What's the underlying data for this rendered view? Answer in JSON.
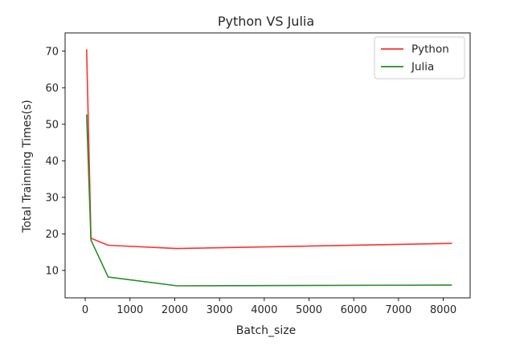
{
  "chart_data": {
    "type": "line",
    "title": "Python VS Julia",
    "xlabel": "Batch_size",
    "ylabel": "Total Trainning Times(s)",
    "xlim": [
      -450,
      8600
    ],
    "ylim": [
      2.5,
      75
    ],
    "xticks": [
      0,
      1000,
      2000,
      3000,
      4000,
      5000,
      6000,
      7000,
      8000
    ],
    "yticks": [
      10,
      20,
      30,
      40,
      50,
      60,
      70
    ],
    "grid": false,
    "legend_position": "top-right",
    "series": [
      {
        "name": "Python",
        "color": "#ff3030",
        "x": [
          32,
          128,
          512,
          2048,
          8192
        ],
        "y": [
          70.5,
          18.8,
          16.9,
          16.0,
          17.4
        ]
      },
      {
        "name": "Julia",
        "color": "#2a8a2a",
        "x": [
          32,
          128,
          512,
          2048,
          8192
        ],
        "y": [
          52.7,
          18.3,
          8.2,
          5.8,
          6.0
        ]
      }
    ]
  }
}
